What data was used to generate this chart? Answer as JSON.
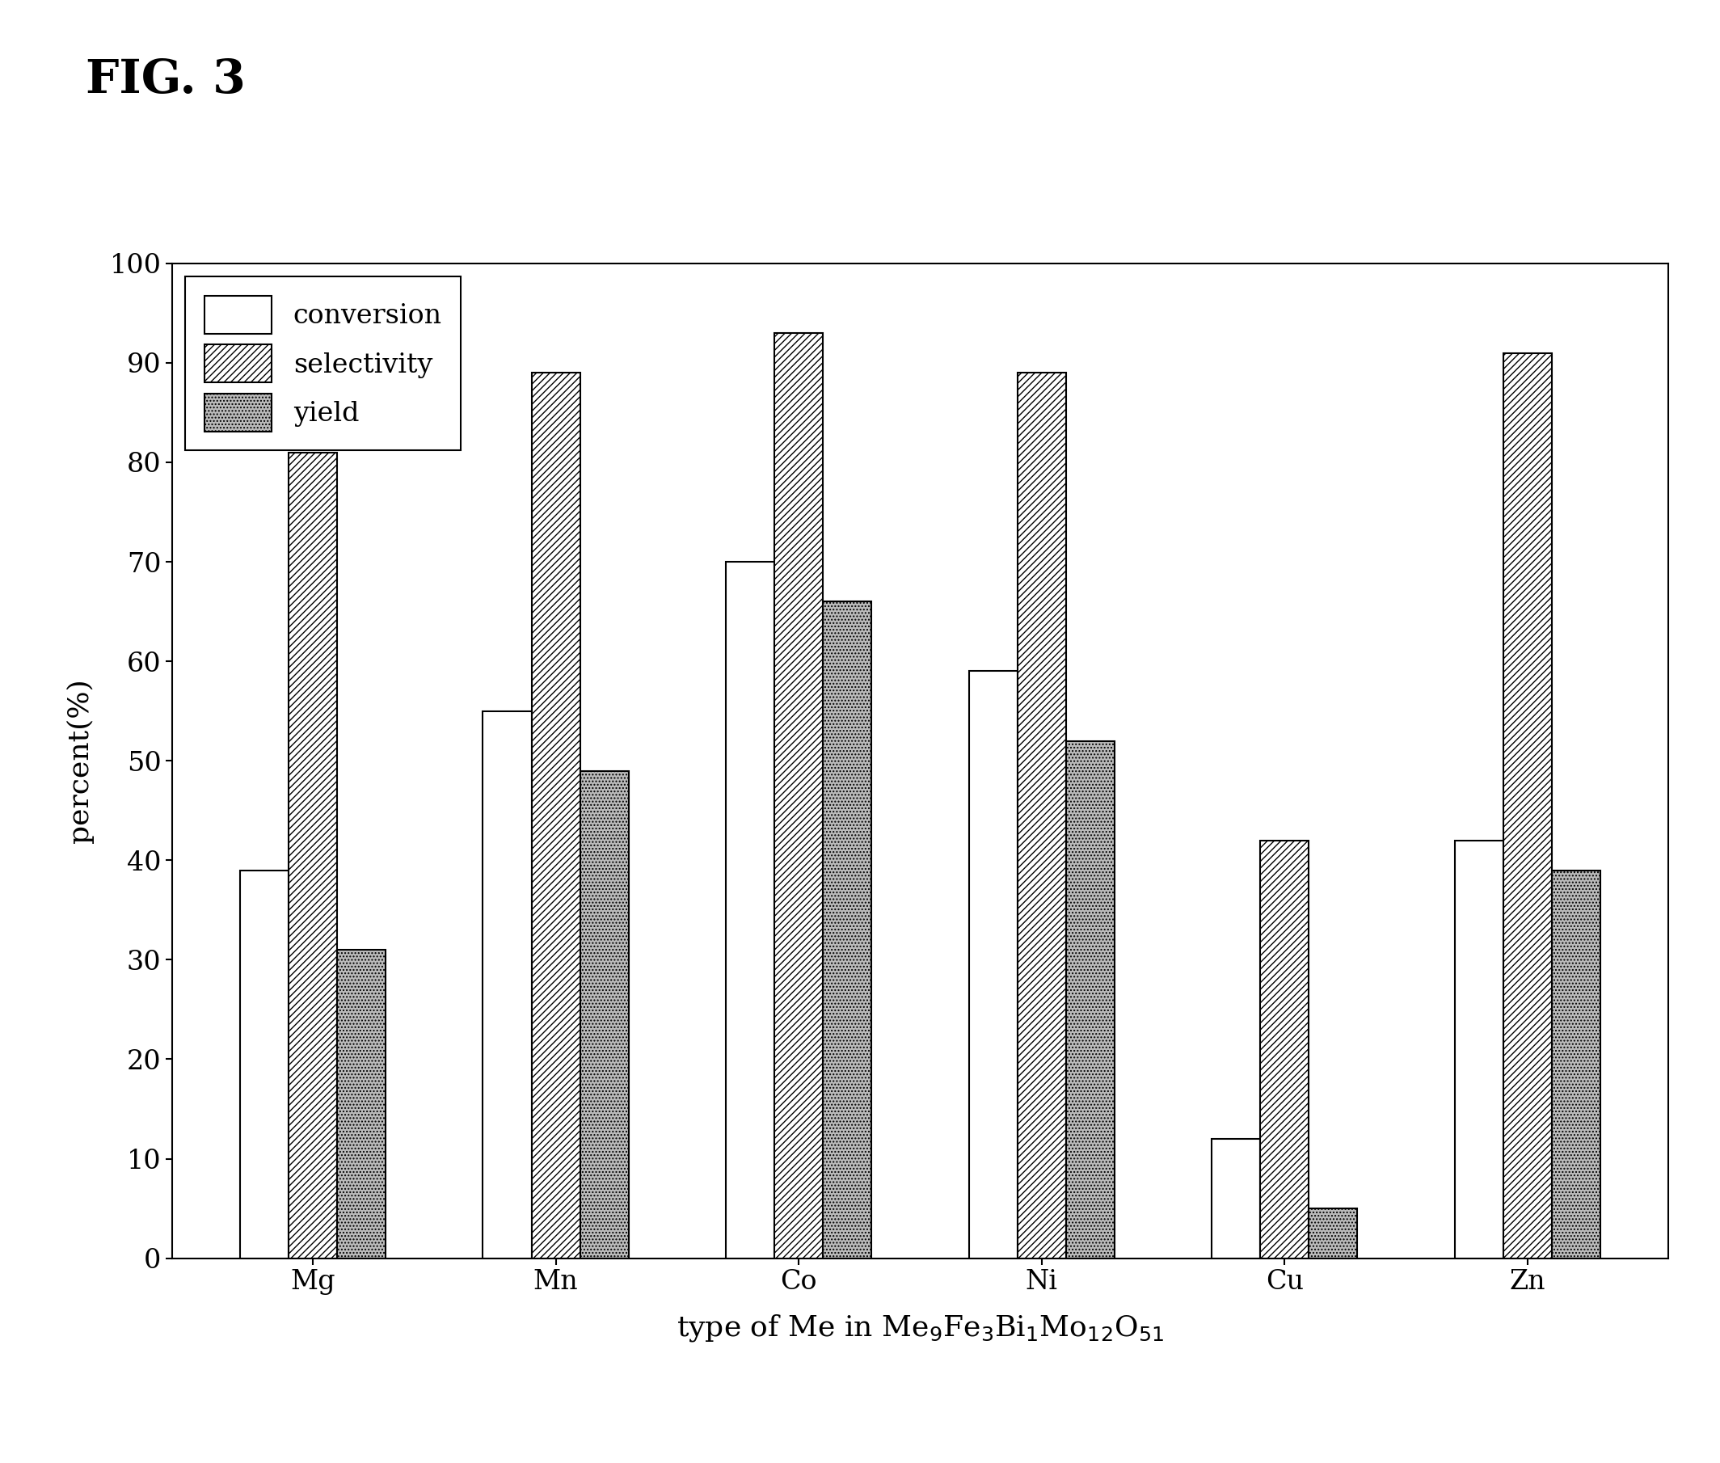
{
  "categories": [
    "Mg",
    "Mn",
    "Co",
    "Ni",
    "Cu",
    "Zn"
  ],
  "conversion": [
    39,
    55,
    70,
    59,
    12,
    42
  ],
  "selectivity": [
    81,
    89,
    93,
    89,
    42,
    91
  ],
  "yield": [
    31,
    49,
    66,
    52,
    5,
    39
  ],
  "ylabel": "percent(%)",
  "xlabel_text": "type of Me in Me$_{9}$Fe$_{3}$Bi$_{1}$Mo$_{12}$O$_{51}$",
  "ylim": [
    0,
    100
  ],
  "yticks": [
    0,
    10,
    20,
    30,
    40,
    50,
    60,
    70,
    80,
    90,
    100
  ],
  "legend_labels": [
    "conversion",
    "selectivity",
    "yield"
  ],
  "title": "FIG. 3",
  "bar_width": 0.2,
  "figure_bg": "#ffffff",
  "axes_bg": "#ffffff",
  "bar_color_conversion": "#ffffff",
  "bar_color_selectivity": "#ffffff",
  "bar_color_yield": "#bbbbbb",
  "bar_edge_color": "#000000",
  "hatch_conversion": "",
  "hatch_selectivity": "////",
  "hatch_yield": "....",
  "font_size_title": 42,
  "font_size_axis_label": 26,
  "font_size_tick": 24,
  "font_size_legend": 24,
  "bar_linewidth": 1.5
}
